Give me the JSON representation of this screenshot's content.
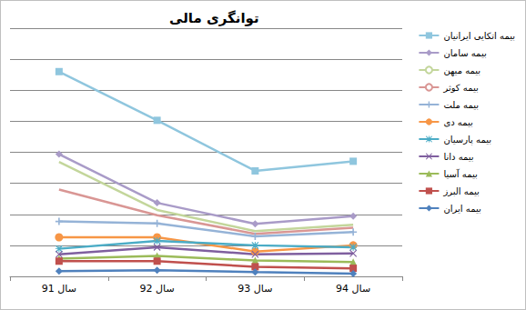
{
  "chart_data": {
    "type": "line",
    "title": "توانگری مالی",
    "categories": [
      "سال 91",
      "سال 92",
      "سال 93",
      "سال 94"
    ],
    "ylim": [
      0,
      800
    ],
    "yticks": [
      0,
      100,
      200,
      300,
      400,
      500,
      600,
      700,
      800
    ],
    "grid": true,
    "legend": "right",
    "tick_labels": "x",
    "series": [
      {
        "name": "بیمه اتکایی ایرانیان",
        "color": "#8fc6de",
        "marker": "square",
        "values": [
          660,
          503,
          340,
          371
        ]
      },
      {
        "name": "بیمه سامان",
        "color": "#a99bc8",
        "marker": "diamond",
        "values": [
          394,
          237,
          169,
          194
        ]
      },
      {
        "name": "بیمه میهن",
        "color": "#c3d69b",
        "marker": "none",
        "values": [
          369,
          214,
          146,
          166
        ]
      },
      {
        "name": "بیمه کوثر",
        "color": "#d99694",
        "marker": "none",
        "values": [
          280,
          197,
          137,
          157
        ]
      },
      {
        "name": "بیمه ملت",
        "color": "#95b3d7",
        "marker": "plus",
        "values": [
          177,
          171,
          129,
          143
        ]
      },
      {
        "name": "بیمه دی",
        "color": "#f79646",
        "marker": "circle",
        "values": [
          126,
          126,
          80,
          100
        ]
      },
      {
        "name": "بیمه پارسیان",
        "color": "#4bacc6",
        "marker": "star",
        "values": [
          89,
          114,
          100,
          94
        ]
      },
      {
        "name": "بیمه دانا",
        "color": "#7f5f9f",
        "marker": "x",
        "values": [
          71,
          94,
          71,
          74
        ]
      },
      {
        "name": "بیمه آسیا",
        "color": "#9bbb59",
        "marker": "triangle",
        "values": [
          57,
          66,
          51,
          46
        ]
      },
      {
        "name": "بیمه البرز",
        "color": "#c0504d",
        "marker": "square",
        "values": [
          49,
          49,
          31,
          26
        ]
      },
      {
        "name": "بیمه ایران",
        "color": "#4f81bd",
        "marker": "diamond",
        "values": [
          17,
          20,
          14,
          9
        ]
      }
    ]
  }
}
